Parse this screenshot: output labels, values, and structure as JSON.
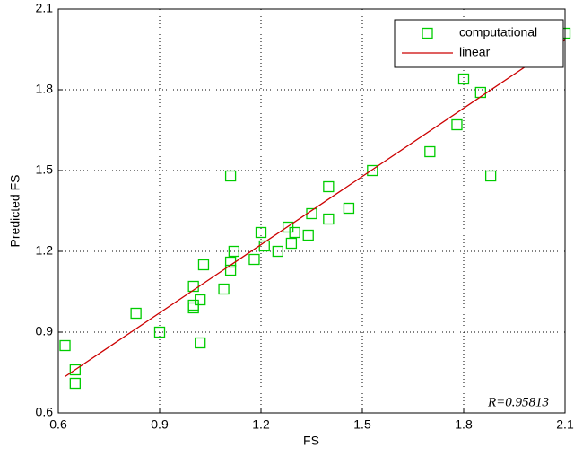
{
  "chart_data": {
    "type": "scatter",
    "xlabel": "FS",
    "ylabel": "Predicted FS",
    "annotation": "R=0.95813",
    "xlim": [
      0.6,
      2.1
    ],
    "xticks": [
      0.6,
      0.9,
      1.2,
      1.5,
      1.8,
      2.1
    ],
    "ylim": [
      0.6,
      2.1
    ],
    "yticks": [
      0.6,
      0.9,
      1.2,
      1.5,
      1.8,
      2.1
    ],
    "grid": true,
    "legend": "upper right",
    "series": [
      {
        "name": "computational",
        "color": "#00cc00",
        "kind": "scatter",
        "x": [
          0.62,
          0.65,
          0.65,
          0.83,
          0.9,
          1.0,
          1.0,
          1.0,
          1.02,
          1.02,
          1.03,
          1.09,
          1.11,
          1.11,
          1.11,
          1.12,
          1.18,
          1.2,
          1.21,
          1.25,
          1.28,
          1.29,
          1.3,
          1.34,
          1.35,
          1.4,
          1.4,
          1.46,
          1.53,
          1.7,
          1.78,
          1.8,
          1.85,
          1.88,
          2.1
        ],
        "values": [
          0.85,
          0.76,
          0.71,
          0.97,
          0.9,
          1.0,
          0.99,
          1.07,
          1.02,
          0.86,
          1.15,
          1.06,
          1.48,
          1.16,
          1.13,
          1.2,
          1.17,
          1.27,
          1.22,
          1.2,
          1.29,
          1.23,
          1.27,
          1.26,
          1.34,
          1.44,
          1.32,
          1.36,
          1.5,
          1.57,
          1.67,
          1.84,
          1.79,
          1.48,
          2.01
        ]
      },
      {
        "name": "linear",
        "color": "#cc0000",
        "kind": "line",
        "x": [
          0.62,
          2.1
        ],
        "values": [
          0.735,
          1.985
        ]
      }
    ]
  }
}
